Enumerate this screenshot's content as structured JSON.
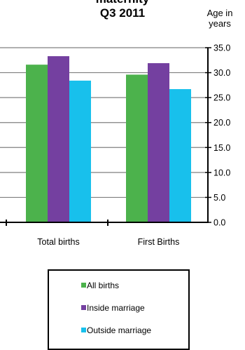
{
  "chart_data": {
    "type": "bar",
    "title_lines": [
      "maternity",
      "Q3 2011"
    ],
    "ylabel_lines": [
      "Age in",
      "years"
    ],
    "categories": [
      "Total births",
      "First Births"
    ],
    "series": [
      {
        "name": "All births",
        "values": [
          31.6,
          29.6
        ],
        "color": "#4cb24c"
      },
      {
        "name": "Inside marriage",
        "values": [
          33.3,
          31.9
        ],
        "color": "#7440a0"
      },
      {
        "name": "Outside marriage",
        "values": [
          28.4,
          26.7
        ],
        "color": "#18c0ec"
      }
    ],
    "yticks": [
      "0.0",
      "5.0",
      "10.0",
      "15.0",
      "20.0",
      "25.0",
      "30.0",
      "35.0"
    ],
    "ylim": [
      0,
      35
    ],
    "grid": true,
    "legend": "bottom"
  }
}
